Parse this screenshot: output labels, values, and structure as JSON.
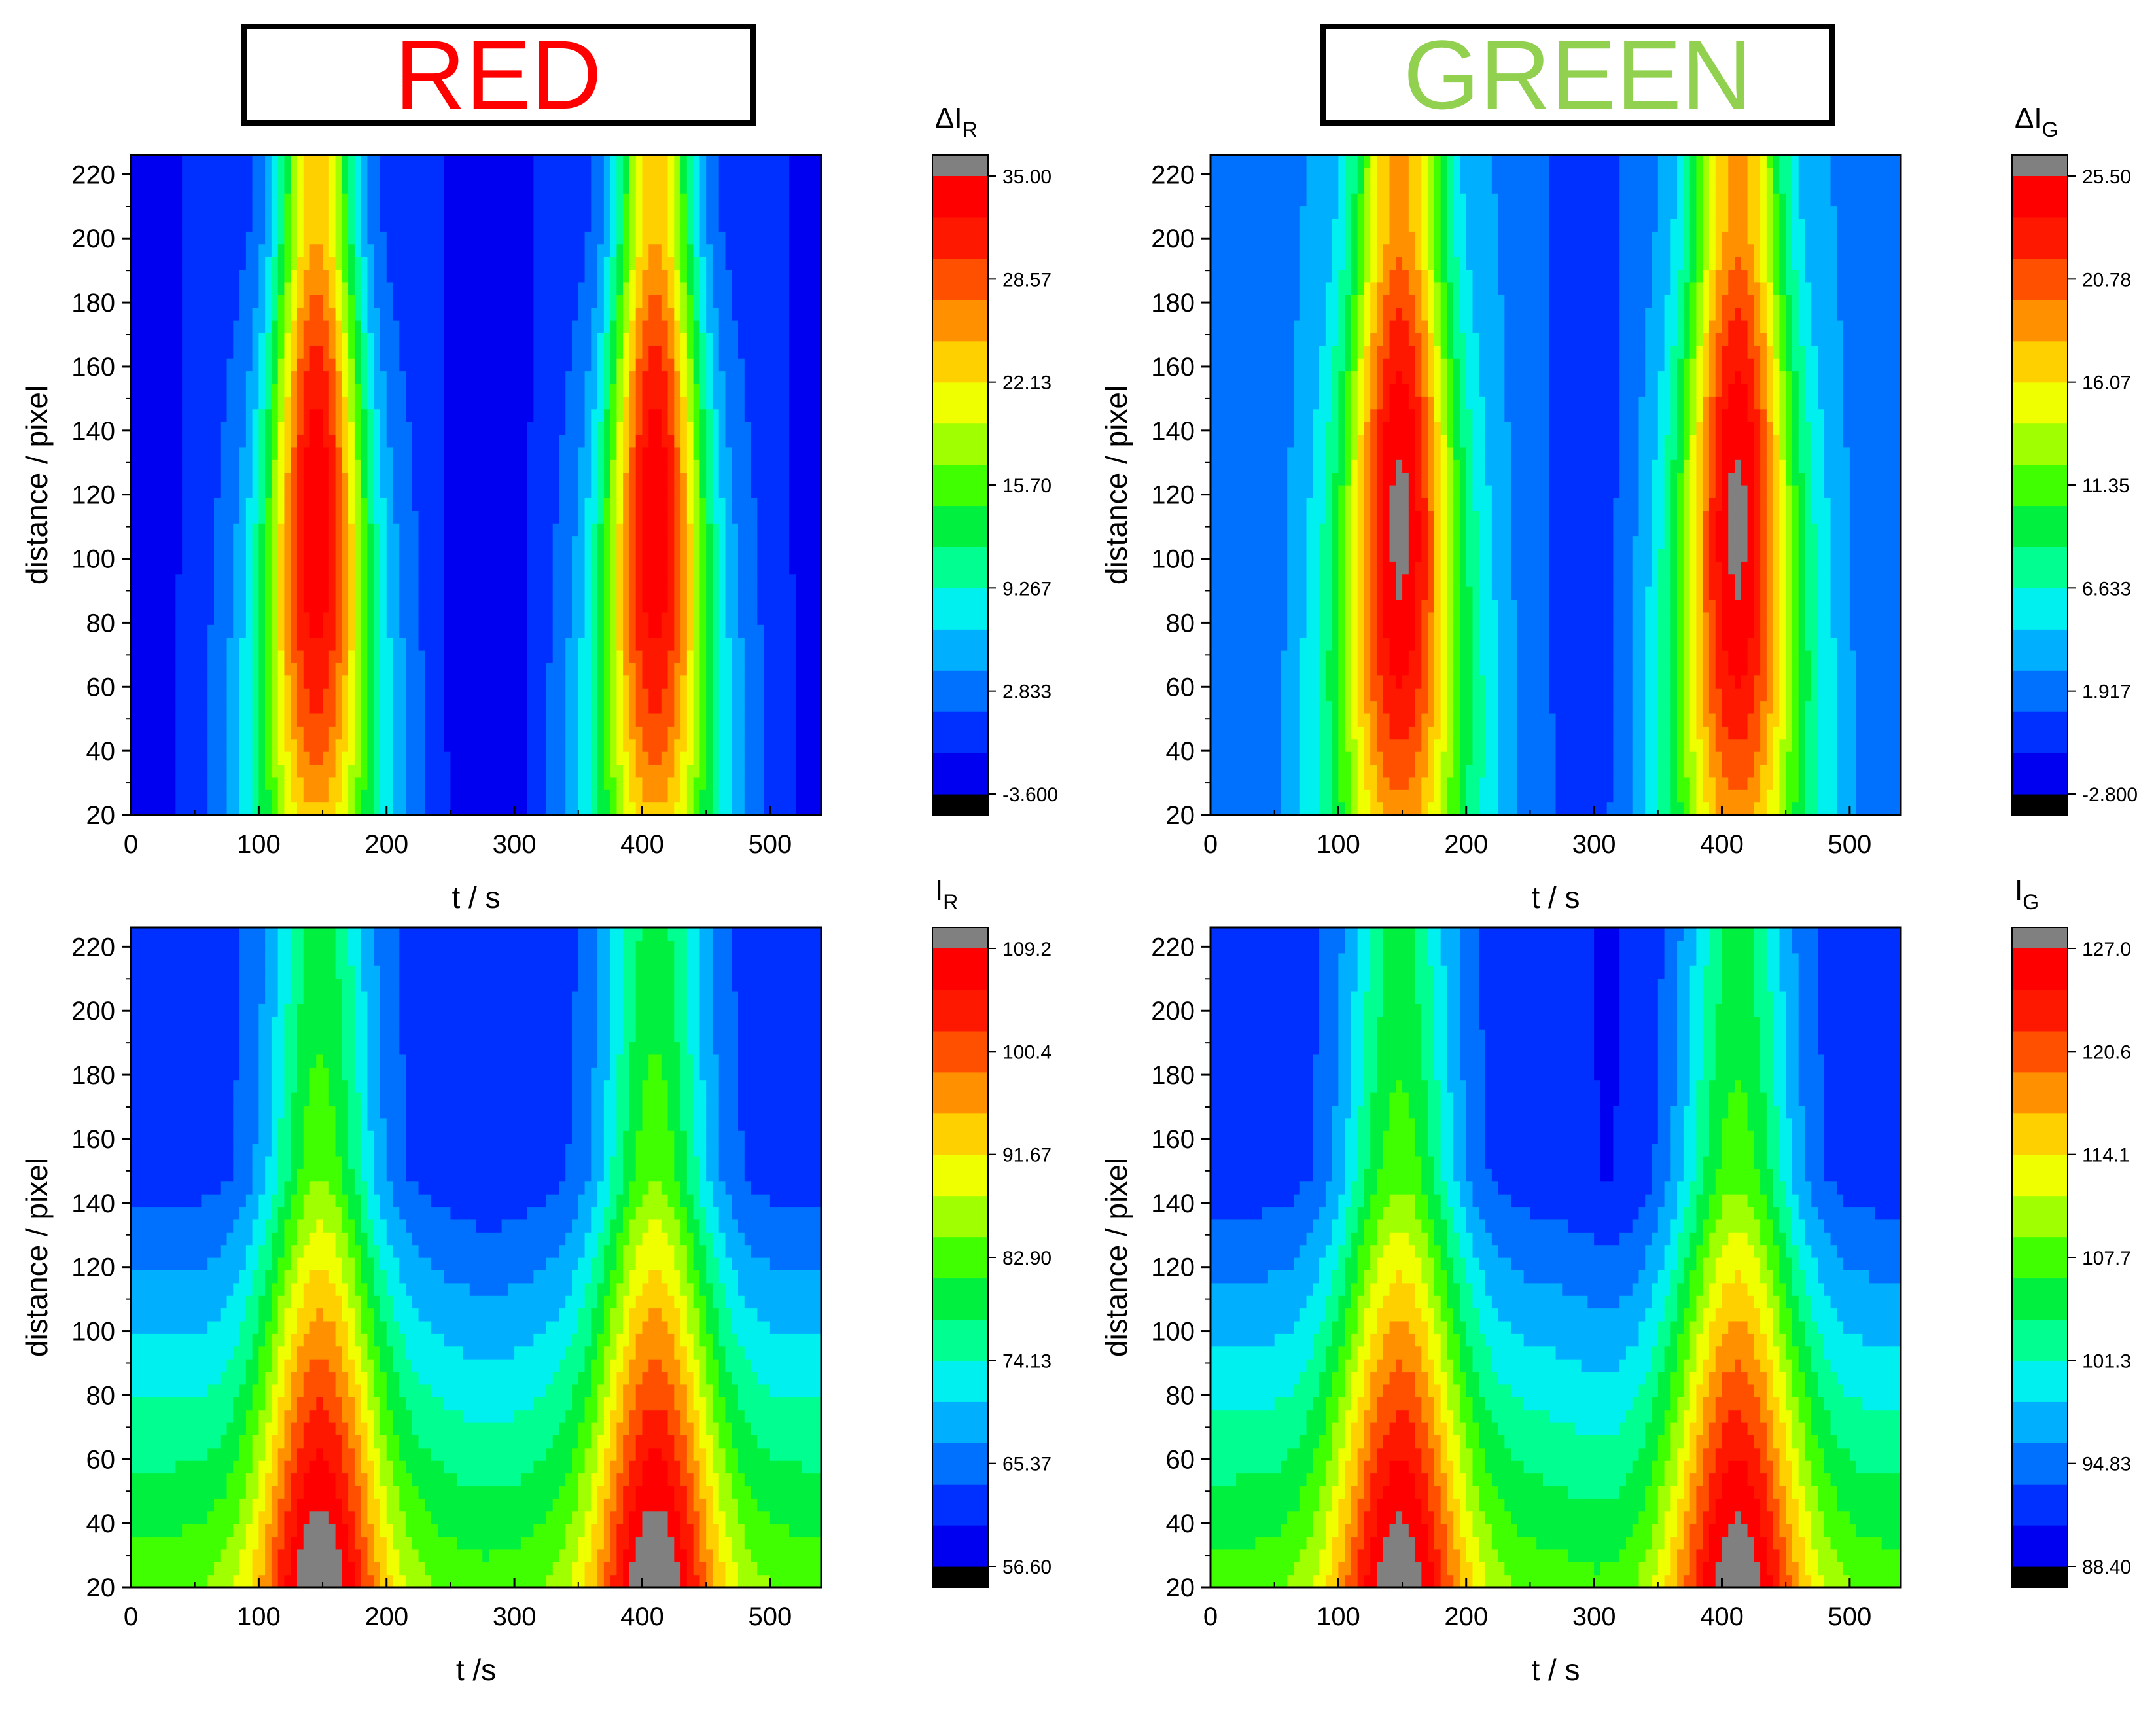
{
  "section_titles": {
    "red": "RED",
    "green": "GREEN",
    "red_color": "#ff0000",
    "green_color": "#92d050"
  },
  "colormap": [
    "#0000f0",
    "#0030ff",
    "#0070ff",
    "#00b0ff",
    "#00f0f0",
    "#00ff90",
    "#00f040",
    "#40ff00",
    "#a0ff00",
    "#f0ff00",
    "#ffd000",
    "#ff9000",
    "#ff5000",
    "#ff1800",
    "#ff0000"
  ],
  "colormap_under": "#000000",
  "colormap_over": "#808080",
  "chart_data": [
    {
      "type": "heatmap",
      "id": "red-delta",
      "channel": "red",
      "kind": "delta",
      "xlabel": "t / s",
      "ylabel": "distance / pixel",
      "xlim": [
        0,
        540
      ],
      "ylim": [
        20,
        226
      ],
      "xticks": [
        "0",
        "100",
        "200",
        "300",
        "400",
        "500"
      ],
      "yticks": [
        "20",
        "40",
        "60",
        "80",
        "100",
        "120",
        "140",
        "160",
        "180",
        "200",
        "220"
      ],
      "colorbar": {
        "label_main": "ΔI",
        "label_sub": "R",
        "min": -3.6,
        "max": 35.0,
        "ticks": [
          "35.00",
          "28.57",
          "22.13",
          "15.70",
          "9.267",
          "2.833",
          "-3.600"
        ]
      },
      "model": {
        "peaks": [
          145,
          410
        ],
        "peak_amplitude": 36,
        "baseline": -1.5,
        "peak_width_bottom": 36,
        "peak_width_top": 22,
        "secondary_bump": 2.0,
        "dark_valley_center": 280,
        "vertical_gradient": 0
      }
    },
    {
      "type": "heatmap",
      "id": "green-delta",
      "channel": "green",
      "kind": "delta",
      "xlabel": "t / s",
      "ylabel": "distance / pixel",
      "xlim": [
        0,
        540
      ],
      "ylim": [
        20,
        226
      ],
      "xticks": [
        "0",
        "100",
        "200",
        "300",
        "400",
        "500"
      ],
      "yticks": [
        "20",
        "40",
        "60",
        "80",
        "100",
        "120",
        "140",
        "160",
        "180",
        "200",
        "220"
      ],
      "colorbar": {
        "label_main": "ΔI",
        "label_sub": "G",
        "min": -2.8,
        "max": 25.5,
        "ticks": [
          "25.50",
          "20.78",
          "16.07",
          "11.35",
          "6.633",
          "1.917",
          "-2.800"
        ]
      },
      "model": {
        "peaks": [
          148,
          412
        ],
        "peak_amplitude": 25,
        "baseline": 1.0,
        "peak_width_bottom": 38,
        "peak_width_top": 26,
        "secondary_bump": 1.5,
        "dark_valley_center": 315,
        "vertical_gradient": 0
      }
    },
    {
      "type": "heatmap",
      "id": "red-intensity",
      "channel": "red",
      "kind": "intensity",
      "xlabel": "t /s",
      "ylabel": "distance / pixel",
      "xlim": [
        0,
        540
      ],
      "ylim": [
        20,
        226
      ],
      "xticks": [
        "0",
        "100",
        "200",
        "300",
        "400",
        "500"
      ],
      "yticks": [
        "20",
        "40",
        "60",
        "80",
        "100",
        "120",
        "140",
        "160",
        "180",
        "200",
        "220"
      ],
      "colorbar": {
        "label_main": "I",
        "label_sub": "R",
        "min": 56.6,
        "max": 109.2,
        "ticks": [
          "109.2",
          "100.4",
          "91.67",
          "82.90",
          "74.13",
          "65.37",
          "56.60"
        ]
      },
      "model": {
        "peaks": [
          148,
          410
        ],
        "peak_amplitude": 30,
        "baseline": 62,
        "peak_width_bottom": 34,
        "peak_width_top": 28,
        "secondary_bump": 0,
        "dark_valley_center": 280,
        "vertical_gradient": 22
      }
    },
    {
      "type": "heatmap",
      "id": "green-intensity",
      "channel": "green",
      "kind": "intensity",
      "xlabel": "t / s",
      "ylabel": "distance / pixel",
      "xlim": [
        0,
        540
      ],
      "ylim": [
        20,
        226
      ],
      "xticks": [
        "0",
        "100",
        "200",
        "300",
        "400",
        "500"
      ],
      "yticks": [
        "20",
        "40",
        "60",
        "80",
        "100",
        "120",
        "140",
        "160",
        "180",
        "200",
        "220"
      ],
      "colorbar": {
        "label_main": "I",
        "label_sub": "G",
        "min": 88.4,
        "max": 127.0,
        "ticks": [
          "127.0",
          "120.6",
          "114.1",
          "107.7",
          "101.3",
          "94.83",
          "88.40"
        ]
      },
      "model": {
        "peaks": [
          148,
          412
        ],
        "peak_amplitude": 22,
        "baseline": 92,
        "peak_width_bottom": 36,
        "peak_width_top": 30,
        "secondary_bump": 0,
        "dark_valley_center": 315,
        "vertical_gradient": 16
      }
    }
  ]
}
